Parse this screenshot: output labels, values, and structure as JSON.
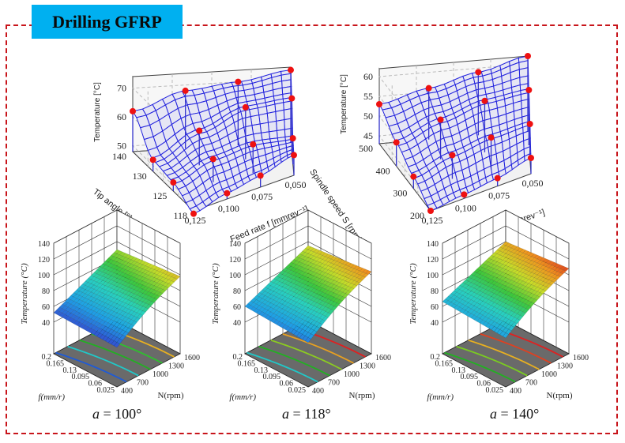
{
  "header": {
    "title": "Drilling GFRP"
  },
  "colors": {
    "frame": "#c8151b",
    "badge": "#00b0f0",
    "mesh": "#2222dd",
    "point": "#ee1111",
    "floor": "#6a6a6a"
  },
  "chart_data": [
    {
      "type": "surface",
      "id": "top-left",
      "zlabel": "Temperature [°C]",
      "xlabel": "Feed rate f [mmrev⁻¹]",
      "ylabel": "Tip angle [°]",
      "zticks": [
        "50",
        "60",
        "70"
      ],
      "xticks": [
        "0,125",
        "0,100",
        "0,075",
        "0,050"
      ],
      "yticks": [
        "140",
        "130",
        "125",
        "118"
      ],
      "zlim": [
        48,
        74
      ],
      "x": [
        0.125,
        0.1,
        0.075,
        0.05
      ],
      "y": [
        140,
        130,
        125,
        118
      ],
      "points": [
        {
          "x": 0.05,
          "y": 140,
          "z": 73
        },
        {
          "x": 0.075,
          "y": 140,
          "z": 70
        },
        {
          "x": 0.1,
          "y": 140,
          "z": 68
        },
        {
          "x": 0.125,
          "y": 140,
          "z": 62
        },
        {
          "x": 0.05,
          "y": 130,
          "z": 67
        },
        {
          "x": 0.075,
          "y": 130,
          "z": 66
        },
        {
          "x": 0.1,
          "y": 130,
          "z": 60
        },
        {
          "x": 0.125,
          "y": 130,
          "z": 52
        },
        {
          "x": 0.05,
          "y": 125,
          "z": 57
        },
        {
          "x": 0.075,
          "y": 125,
          "z": 58
        },
        {
          "x": 0.1,
          "y": 125,
          "z": 56
        },
        {
          "x": 0.125,
          "y": 125,
          "z": 51
        },
        {
          "x": 0.05,
          "y": 118,
          "z": 55
        },
        {
          "x": 0.075,
          "y": 118,
          "z": 52
        },
        {
          "x": 0.1,
          "y": 118,
          "z": 50
        },
        {
          "x": 0.125,
          "y": 118,
          "z": 47
        }
      ]
    },
    {
      "type": "surface",
      "id": "top-right",
      "zlabel": "Temperature [°C]",
      "xlabel": "Feed rate f [mmrev⁻¹]",
      "ylabel": "Spindle speed S [rpm]",
      "zticks": [
        "45",
        "50",
        "55",
        "60"
      ],
      "xticks": [
        "0,125",
        "0,100",
        "0,075",
        "0,050"
      ],
      "yticks": [
        "500",
        "400",
        "300",
        "200"
      ],
      "zlim": [
        43,
        62
      ],
      "x": [
        0.125,
        0.1,
        0.075,
        0.05
      ],
      "y": [
        500,
        400,
        300,
        200
      ],
      "points": [
        {
          "x": 0.05,
          "y": 500,
          "z": 62
        },
        {
          "x": 0.075,
          "y": 500,
          "z": 59
        },
        {
          "x": 0.1,
          "y": 500,
          "z": 56
        },
        {
          "x": 0.125,
          "y": 500,
          "z": 53
        },
        {
          "x": 0.05,
          "y": 400,
          "z": 57
        },
        {
          "x": 0.075,
          "y": 400,
          "z": 56
        },
        {
          "x": 0.1,
          "y": 400,
          "z": 53
        },
        {
          "x": 0.125,
          "y": 400,
          "z": 49
        },
        {
          "x": 0.05,
          "y": 300,
          "z": 52
        },
        {
          "x": 0.075,
          "y": 300,
          "z": 51
        },
        {
          "x": 0.1,
          "y": 300,
          "z": 49
        },
        {
          "x": 0.125,
          "y": 300,
          "z": 46
        },
        {
          "x": 0.05,
          "y": 200,
          "z": 47
        },
        {
          "x": 0.075,
          "y": 200,
          "z": 45
        },
        {
          "x": 0.1,
          "y": 200,
          "z": 44
        },
        {
          "x": 0.125,
          "y": 200,
          "z": 43
        }
      ]
    },
    {
      "type": "surface",
      "id": "bottom-100",
      "caption_var": "a",
      "caption_value": " = 100°",
      "zlabel": "Temperature (°C)",
      "xlabel": "N(rpm)",
      "ylabel": "f(mm/r)",
      "zticks": [
        "40",
        "60",
        "80",
        "100",
        "120",
        "140"
      ],
      "xticks": [
        "400",
        "700",
        "1000",
        "1300",
        "1600"
      ],
      "yticks": [
        "0.2",
        "0.165",
        "0.13",
        "0.095",
        "0.06",
        "0.025"
      ],
      "zlim": [
        40,
        140
      ],
      "corners": {
        "f_high_N_low": 52,
        "f_low_N_low": 50,
        "f_high_N_high": 90,
        "f_low_N_high": 98
      },
      "contour_colors": [
        "#1f5bd6",
        "#20c8c8",
        "#22b022",
        "#2ec02e",
        "#e8b020"
      ]
    },
    {
      "type": "surface",
      "id": "bottom-118",
      "caption_var": "a",
      "caption_value": " = 118°",
      "zlabel": "Temperature (°C)",
      "xlabel": "N(rpm)",
      "ylabel": "f(mm/r)",
      "zticks": [
        "40",
        "60",
        "80",
        "100",
        "120",
        "140"
      ],
      "xticks": [
        "400",
        "700",
        "1000",
        "1300",
        "1600"
      ],
      "yticks": [
        "0.2",
        "0.165",
        "0.13",
        "0.095",
        "0.06",
        "0.025"
      ],
      "zlim": [
        40,
        140
      ],
      "corners": {
        "f_high_N_low": 60,
        "f_low_N_low": 56,
        "f_high_N_high": 95,
        "f_low_N_high": 104
      },
      "contour_colors": [
        "#20c8c8",
        "#22b022",
        "#8ccc20",
        "#e8a020",
        "#e02020"
      ]
    },
    {
      "type": "surface",
      "id": "bottom-140",
      "caption_var": "a",
      "caption_value": " = 140°",
      "zlabel": "Temperature (°C)",
      "xlabel": "N(rpm)",
      "ylabel": "f(mm/r)",
      "zticks": [
        "40",
        "60",
        "80",
        "100",
        "120",
        "140"
      ],
      "xticks": [
        "400",
        "700",
        "1000",
        "1300",
        "1600"
      ],
      "yticks": [
        "0.2",
        "0.165",
        "0.13",
        "0.095",
        "0.06",
        "0.025"
      ],
      "zlim": [
        40,
        140
      ],
      "corners": {
        "f_high_N_low": 66,
        "f_low_N_low": 62,
        "f_high_N_high": 100,
        "f_low_N_high": 108
      },
      "contour_colors": [
        "#22b022",
        "#7acc20",
        "#e8b020",
        "#e04020",
        "#e02020"
      ]
    }
  ]
}
